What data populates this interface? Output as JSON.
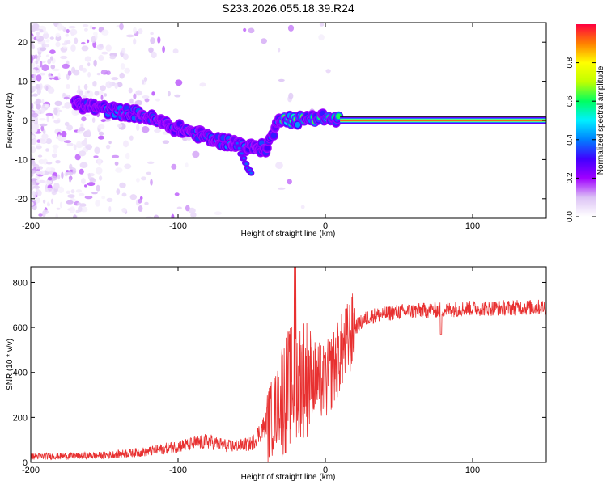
{
  "title": "S233.2026.055.18.39.R24",
  "chart_data": [
    {
      "type": "heatmap",
      "xlabel": "Height of straight line (km)",
      "ylabel": "Frequency (Hz)",
      "xlim": [
        -200,
        150
      ],
      "ylim": [
        -25,
        25
      ],
      "xticks": [
        -200,
        -100,
        0,
        100
      ],
      "yticks": [
        -20,
        -10,
        0,
        10,
        20
      ],
      "colorbar": {
        "label": "Normalized spectral amplitude",
        "range": [
          0,
          1
        ],
        "ticks": [
          "0.0",
          "0.2",
          "0.4",
          "0.6",
          "0.8"
        ],
        "colors": [
          "#ffffff",
          "#dcc2f5",
          "#a000ff",
          "#4000ff",
          "#0080ff",
          "#00f0ff",
          "#00ff60",
          "#c0ff00",
          "#ffff00",
          "#ff8000",
          "#ff0040"
        ]
      },
      "ridge": {
        "points": [
          {
            "x": -165,
            "f": 4
          },
          {
            "x": -145,
            "f": 2.5
          },
          {
            "x": -125,
            "f": 1.5
          },
          {
            "x": -105,
            "f": -1.5
          },
          {
            "x": -90,
            "f": -3
          },
          {
            "x": -75,
            "f": -5
          },
          {
            "x": -60,
            "f": -6
          },
          {
            "x": -50,
            "f": -7
          },
          {
            "x": -40,
            "f": -7
          },
          {
            "x": -30,
            "f": 1
          },
          {
            "x": -20,
            "f": 0
          },
          {
            "x": -5,
            "f": 1
          },
          {
            "x": 10,
            "f": 0
          },
          {
            "x": 150,
            "f": 0
          }
        ],
        "branch": [
          {
            "x": -60,
            "f": -6
          },
          {
            "x": -50,
            "f": -14
          }
        ]
      }
    },
    {
      "type": "line",
      "xlabel": "Height of straight line (km)",
      "ylabel": "SNR (10 * v/v)",
      "xlim": [
        -200,
        150
      ],
      "ylim": [
        0,
        870
      ],
      "xticks": [
        -200,
        -100,
        0,
        100
      ],
      "yticks": [
        0,
        200,
        400,
        600,
        800
      ],
      "color": "#e83030",
      "envelope": [
        {
          "x": -200,
          "y": 20
        },
        {
          "x": -150,
          "y": 25
        },
        {
          "x": -120,
          "y": 40
        },
        {
          "x": -100,
          "y": 60
        },
        {
          "x": -80,
          "y": 80
        },
        {
          "x": -65,
          "y": 60
        },
        {
          "x": -50,
          "y": 70
        },
        {
          "x": -40,
          "y": 150
        },
        {
          "x": -30,
          "y": 280
        },
        {
          "x": -20,
          "y": 380
        },
        {
          "x": -10,
          "y": 380
        },
        {
          "x": 0,
          "y": 350
        },
        {
          "x": 10,
          "y": 480
        },
        {
          "x": 20,
          "y": 600
        },
        {
          "x": 30,
          "y": 650
        },
        {
          "x": 50,
          "y": 670
        },
        {
          "x": 100,
          "y": 685
        },
        {
          "x": 150,
          "y": 690
        }
      ]
    }
  ]
}
